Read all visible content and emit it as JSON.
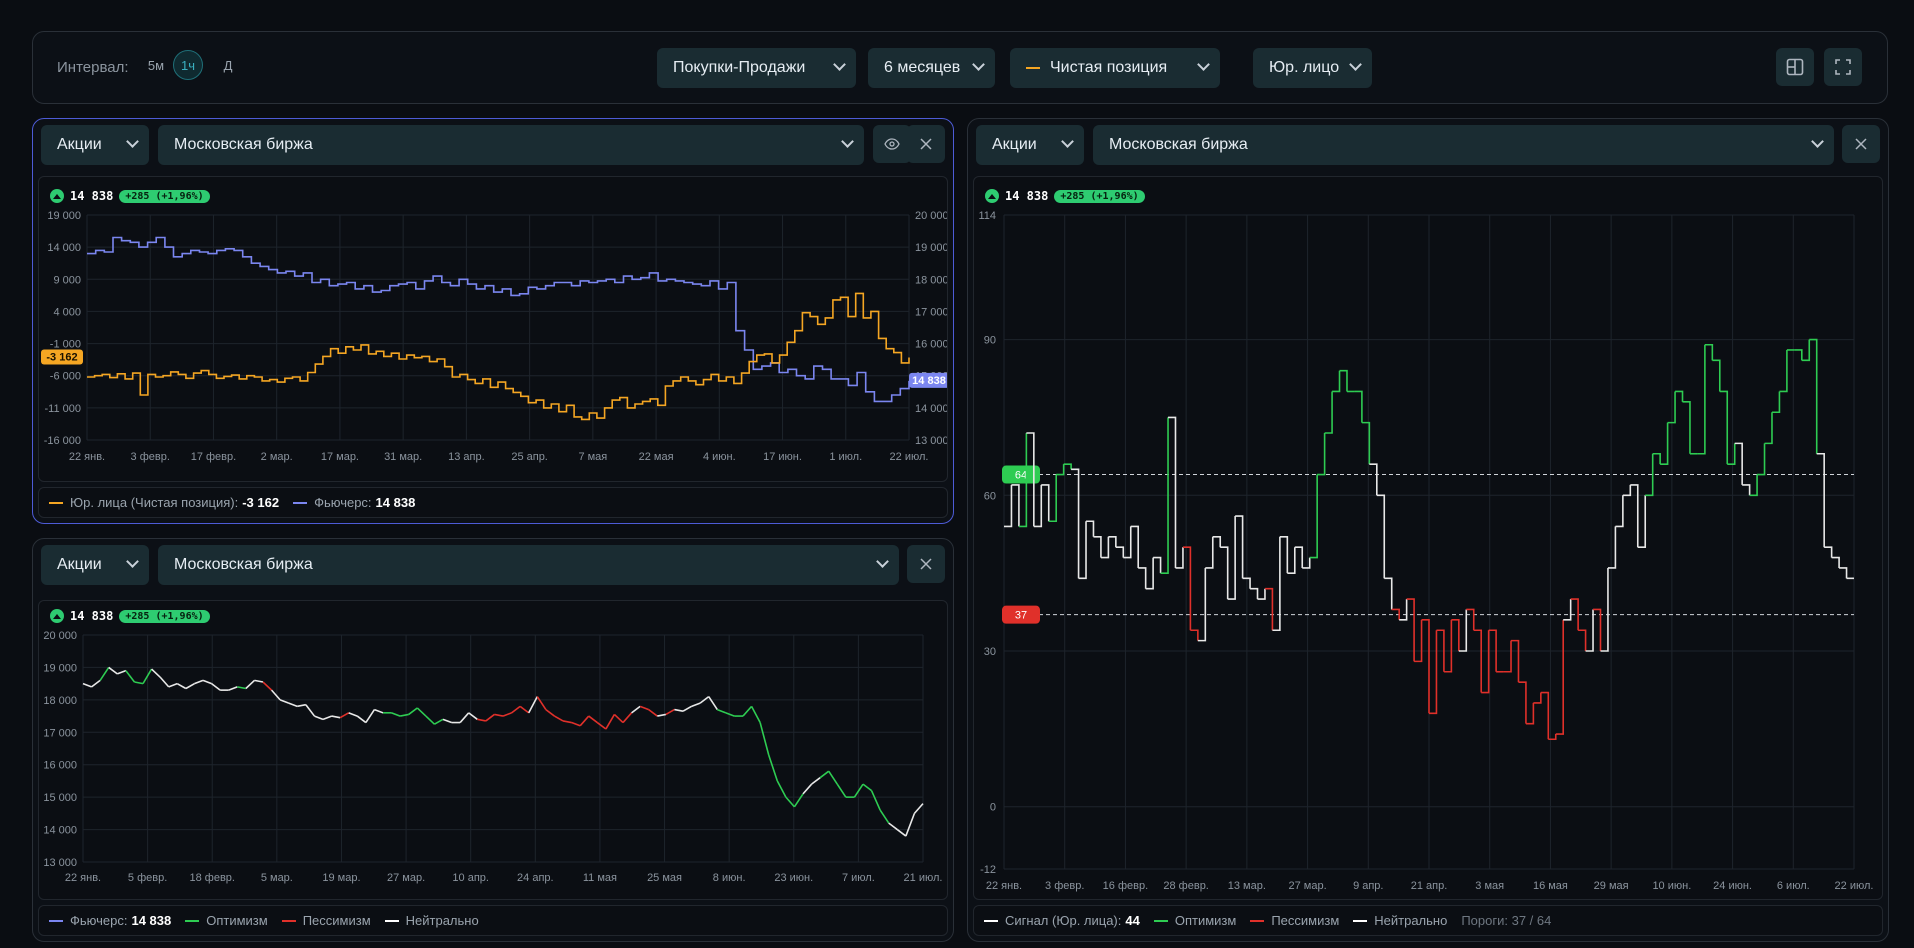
{
  "toolbar": {
    "interval_label": "Интервал:",
    "intervals": [
      "5м",
      "1ч",
      "Д"
    ],
    "active_interval": "1ч",
    "mode": "Покупки-Продажи",
    "period": "6 месяцев",
    "position": "Чистая позиция",
    "entity": "Юр. лицо"
  },
  "panels": {
    "top_left": {
      "asset": "Акции",
      "exchange": "Московская биржа",
      "price": "14 838",
      "change": "+285 (+1,96%)",
      "legend": [
        {
          "label": "Юр. лица (Чистая позиция):",
          "value": "-3 162",
          "color": "#f5a623"
        },
        {
          "label": "Фьючерс:",
          "value": "14 838",
          "color": "#7b86f0"
        }
      ],
      "tag_left": "-3 162",
      "tag_right": "14 838"
    },
    "bottom_left": {
      "asset": "Акции",
      "exchange": "Московская биржа",
      "price": "14 838",
      "change": "+285 (+1,96%)",
      "legend": [
        {
          "label": "Фьючерс:",
          "value": "14 838",
          "color": "#7b86f0"
        },
        {
          "label": "Оптимизм",
          "value": "",
          "color": "#2ecc52"
        },
        {
          "label": "Пессимизм",
          "value": "",
          "color": "#e0302a"
        },
        {
          "label": "Нейтрально",
          "value": "",
          "color": "#ffffff"
        }
      ]
    },
    "right": {
      "asset": "Акции",
      "exchange": "Московская биржа",
      "price": "14 838",
      "change": "+285 (+1,96%)",
      "legend": [
        {
          "label": "Сигнал (Юр. лица):",
          "value": "44",
          "color": "#ffffff"
        },
        {
          "label": "Оптимизм",
          "value": "",
          "color": "#2ecc52"
        },
        {
          "label": "Пессимизм",
          "value": "",
          "color": "#e0302a"
        },
        {
          "label": "Нейтрально",
          "value": "",
          "color": "#ffffff"
        }
      ],
      "thresholds_text": "Пороги: 37 / 64"
    }
  },
  "chart_data": [
    {
      "type": "line",
      "x_ticks": [
        "22 янв.",
        "3 февр.",
        "17 февр.",
        "2 мар.",
        "17 мар.",
        "31 мар.",
        "13 апр.",
        "25 апр.",
        "7 мая",
        "22 мая",
        "4 июн.",
        "17 июн.",
        "1 июл.",
        "22 июл."
      ],
      "y_left_ticks": [
        "19 000",
        "14 000",
        "9 000",
        "4 000",
        "-1 000",
        "-6 000",
        "-11 000",
        "-16 000"
      ],
      "y_right_ticks": [
        "20 000",
        "19 000",
        "18 000",
        "17 000",
        "16 000",
        "15 000",
        "14 000",
        "13 000"
      ],
      "ylim_left": [
        -16000,
        19000
      ],
      "ylim_right": [
        13000,
        20000
      ],
      "series": [
        {
          "name": "Юр. лица (Чистая позиция)",
          "axis": "left",
          "color": "#f5a623",
          "values": [
            -6200,
            -6000,
            -5800,
            -6300,
            -5700,
            -6500,
            -5600,
            -9000,
            -5800,
            -6200,
            -6000,
            -5400,
            -5800,
            -6400,
            -5600,
            -5200,
            -5800,
            -6400,
            -6100,
            -5900,
            -6500,
            -6000,
            -6200,
            -6800,
            -6600,
            -7000,
            -6400,
            -6200,
            -6800,
            -5500,
            -4200,
            -3000,
            -1800,
            -2500,
            -1500,
            -2000,
            -1200,
            -2600,
            -2200,
            -3000,
            -2500,
            -3400,
            -2800,
            -3200,
            -3000,
            -3800,
            -3400,
            -4600,
            -6200,
            -5800,
            -6600,
            -7200,
            -6500,
            -7800,
            -7000,
            -8000,
            -8600,
            -9200,
            -10200,
            -9800,
            -11000,
            -10400,
            -11600,
            -10600,
            -12400,
            -12800,
            -11800,
            -12600,
            -11000,
            -9800,
            -9400,
            -11000,
            -10400,
            -10000,
            -9600,
            -10600,
            -7600,
            -6800,
            -6200,
            -6800,
            -7400,
            -6600,
            -5800,
            -6800,
            -6200,
            -7200,
            -5600,
            -3800,
            -2800,
            -2600,
            -4000,
            -2800,
            -800,
            1000,
            3800,
            3200,
            2000,
            3000,
            5800,
            6200,
            3200,
            6800,
            3000,
            4000,
            -200,
            -1800,
            -2400,
            -4000,
            -3162
          ]
        },
        {
          "name": "Фьючерс",
          "axis": "right",
          "color": "#7b86f0",
          "values": [
            18800,
            18900,
            18850,
            19300,
            19200,
            19150,
            19000,
            19150,
            19300,
            19000,
            18700,
            18800,
            18900,
            18850,
            18800,
            18900,
            18950,
            18900,
            18700,
            18500,
            18400,
            18300,
            18200,
            18250,
            18100,
            18200,
            17900,
            18000,
            17800,
            17850,
            17900,
            17700,
            17800,
            17600,
            17650,
            17800,
            17850,
            17900,
            17700,
            17950,
            18100,
            17900,
            17800,
            18000,
            17850,
            17700,
            17800,
            17600,
            17700,
            17500,
            17550,
            17750,
            17700,
            17800,
            17900,
            17900,
            17800,
            17950,
            17900,
            17950,
            18000,
            17900,
            18100,
            18000,
            18050,
            18200,
            17950,
            18000,
            17950,
            17900,
            17850,
            17800,
            17950,
            17700,
            17900,
            16400,
            15800,
            15200,
            15300,
            15400,
            15100,
            15200,
            15000,
            14900,
            15300,
            15200,
            14900,
            14900,
            14700,
            15100,
            14500,
            14200,
            14200,
            14400,
            14600,
            14838
          ]
        }
      ]
    },
    {
      "type": "line",
      "x_ticks": [
        "22 янв.",
        "5 февр.",
        "18 февр.",
        "5 мар.",
        "19 мар.",
        "27 мар.",
        "10 апр.",
        "24 апр.",
        "11 мая",
        "25 мая",
        "8 июн.",
        "23 июн.",
        "7 июл.",
        "21 июл."
      ],
      "y_ticks": [
        "20 000",
        "19 000",
        "18 000",
        "17 000",
        "16 000",
        "15 000",
        "14 000",
        "13 000"
      ],
      "ylim": [
        13000,
        20000
      ],
      "series": [
        {
          "name": "Фьючерс",
          "values": [
            18500,
            18400,
            18600,
            19000,
            18800,
            18900,
            18550,
            18500,
            18950,
            18700,
            18400,
            18500,
            18350,
            18500,
            18600,
            18500,
            18300,
            18300,
            18400,
            18350,
            18600,
            18550,
            18300,
            18000,
            17900,
            17800,
            17850,
            17500,
            17400,
            17500,
            17450,
            17600,
            17500,
            17300,
            17700,
            17600,
            17600,
            17500,
            17550,
            17750,
            17500,
            17250,
            17400,
            17300,
            17300,
            17600,
            17400,
            17350,
            17550,
            17500,
            17600,
            17800,
            17600,
            18100,
            17700,
            17500,
            17350,
            17300,
            17200,
            17500,
            17300,
            17100,
            17550,
            17300,
            17600,
            17800,
            17700,
            17500,
            17550,
            17700,
            17650,
            17800,
            17900,
            18100,
            17700,
            17600,
            17500,
            17500,
            17800,
            17300,
            16300,
            15500,
            15000,
            14700,
            15100,
            15400,
            15600,
            15800,
            15400,
            15000,
            15000,
            15400,
            15200,
            14600,
            14200,
            14000,
            13800,
            14500,
            14800
          ]
        }
      ]
    },
    {
      "type": "line",
      "x_ticks": [
        "22 янв.",
        "3 февр.",
        "16 февр.",
        "28 февр.",
        "13 мар.",
        "27 мар.",
        "9 апр.",
        "21 апр.",
        "3 мая",
        "16 мая",
        "29 мая",
        "10 июн.",
        "24 июн.",
        "6 июл.",
        "22 июл."
      ],
      "y_ticks": [
        114,
        90,
        60,
        30,
        0,
        -12
      ],
      "ylim": [
        -12,
        114
      ],
      "thresholds": [
        37,
        64
      ],
      "series": [
        {
          "name": "Сигнал (Юр. лица)",
          "values": [
            54,
            62,
            54,
            72,
            54,
            62,
            55,
            64,
            66,
            65,
            44,
            55,
            52,
            48,
            52,
            50,
            48,
            54,
            46,
            42,
            48,
            45,
            75,
            46,
            50,
            34,
            32,
            46,
            52,
            50,
            40,
            56,
            44,
            42,
            40,
            42,
            34,
            52,
            45,
            50,
            46,
            48,
            64,
            72,
            80,
            84,
            80,
            80,
            74,
            66,
            60,
            44,
            38,
            36,
            40,
            28,
            36,
            18,
            34,
            26,
            36,
            30,
            38,
            34,
            22,
            34,
            26,
            26,
            32,
            24,
            16,
            20,
            22,
            13,
            14,
            36,
            40,
            34,
            30,
            38,
            30,
            46,
            54,
            60,
            62,
            50,
            60,
            68,
            66,
            74,
            80,
            78,
            68,
            68,
            89,
            86,
            80,
            66,
            70,
            62,
            60,
            64,
            70,
            76,
            80,
            88,
            88,
            86,
            90,
            68,
            50,
            48,
            46,
            44,
            44
          ]
        }
      ]
    }
  ]
}
